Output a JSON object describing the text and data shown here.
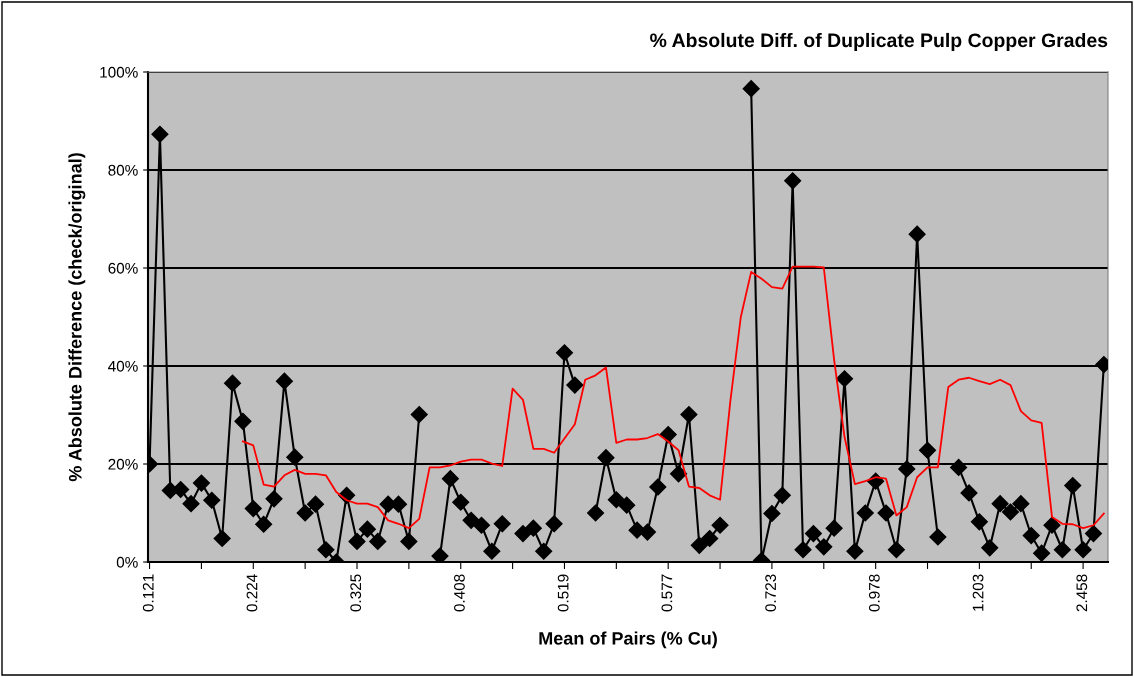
{
  "chart_data": {
    "type": "line",
    "title": "% Absolute Diff. of Duplicate Pulp Copper Grades",
    "xlabel": "Mean of Pairs (% Cu)",
    "ylabel": "% Absolute Difference (check/original)",
    "categories": [
      "0.121",
      null,
      null,
      null,
      null,
      null,
      null,
      null,
      null,
      null,
      "0.224",
      null,
      null,
      null,
      null,
      null,
      null,
      null,
      null,
      null,
      "0.325",
      null,
      null,
      null,
      null,
      null,
      null,
      null,
      null,
      null,
      "0.408",
      null,
      null,
      null,
      null,
      null,
      null,
      null,
      null,
      null,
      "0.519",
      null,
      null,
      null,
      null,
      null,
      null,
      null,
      null,
      null,
      "0.577",
      null,
      null,
      null,
      null,
      null,
      null,
      null,
      null,
      null,
      "0.723",
      null,
      null,
      null,
      null,
      null,
      null,
      null,
      null,
      null,
      "0.978",
      null,
      null,
      null,
      null,
      null,
      null,
      null,
      null,
      null,
      "1.203",
      null,
      null,
      null,
      null,
      null,
      null,
      null,
      null,
      null,
      "2.458",
      null,
      null
    ],
    "series": [
      {
        "color": "#000000",
        "marker": "diamond",
        "values": [
          20,
          87.3,
          14.6,
          14.8,
          11.9,
          16.1,
          12.6,
          4.8,
          36.5,
          28.7,
          10.9,
          7.7,
          12.9,
          36.9,
          21.4,
          10,
          11.8,
          2.5,
          0,
          13.6,
          4.2,
          6.7,
          4.2,
          11.8,
          11.8,
          4.2,
          30.1,
          null,
          1.2,
          17,
          12.2,
          8.5,
          7.5,
          2.2,
          7.8,
          null,
          5.8,
          6.9,
          2.2,
          7.8,
          42.7,
          36.1,
          null,
          10,
          21.3,
          12.7,
          11.6,
          6.5,
          6.1,
          15.3,
          26,
          18,
          30.1,
          3.4,
          4.8,
          7.5,
          null,
          null,
          96.6,
          0.3,
          9.9,
          13.6,
          77.8,
          2.5,
          5.8,
          3.1,
          6.9,
          37.4,
          2.2,
          10,
          16.5,
          10,
          2.5,
          19,
          66.9,
          22.8,
          5.1,
          null,
          19.3,
          14.1,
          8.2,
          2.9,
          11.9,
          10.2,
          11.9,
          5.4,
          1.8,
          7.5,
          2.5,
          15.6,
          2.5,
          5.8,
          40.3
        ]
      },
      {
        "color": "#ff0000",
        "marker": "none",
        "values": [
          null,
          null,
          null,
          null,
          null,
          null,
          null,
          null,
          null,
          24.6,
          23.8,
          15.8,
          15.4,
          17.7,
          18.8,
          18,
          18,
          17.7,
          14.3,
          12.6,
          11.9,
          11.9,
          11.2,
          8.5,
          7.8,
          6.9,
          8.8,
          19.3,
          19.3,
          19.7,
          20.5,
          20.9,
          20.9,
          20.1,
          19.6,
          35.4,
          33.1,
          23.1,
          23.1,
          22.3,
          25.2,
          28.1,
          37.2,
          38.1,
          39.7,
          24.3,
          25,
          25,
          25.3,
          26.1,
          24.6,
          22.8,
          15.4,
          15.1,
          13.6,
          12.7,
          33,
          50,
          59.2,
          57.8,
          56.1,
          55.8,
          60.3,
          60.3,
          60.3,
          60.1,
          41.2,
          25.5,
          15.9,
          16.5,
          17.3,
          17,
          9.5,
          11.2,
          17.3,
          19.3,
          19.3,
          35.7,
          37.2,
          37.6,
          36.9,
          36.3,
          37.2,
          36.1,
          30.8,
          28.9,
          28.4,
          9.2,
          7.8,
          7.7,
          6.9,
          7.5,
          9.9
        ]
      }
    ],
    "ylim": [
      0,
      100
    ],
    "yticks": [
      {
        "value": 0,
        "label": "0%"
      },
      {
        "value": 20,
        "label": "20%"
      },
      {
        "value": 40,
        "label": "40%"
      },
      {
        "value": 60,
        "label": "60%"
      },
      {
        "value": 80,
        "label": "80%"
      },
      {
        "value": 100,
        "label": "100%"
      }
    ],
    "grid": "y",
    "legend": false
  }
}
